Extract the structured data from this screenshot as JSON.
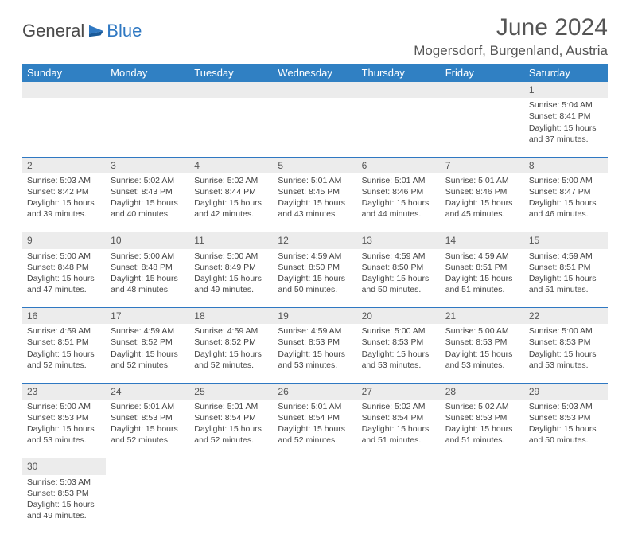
{
  "brand": {
    "part1": "General",
    "part2": "Blue"
  },
  "title": "June 2024",
  "location": "Mogersdorf, Burgenland, Austria",
  "colors": {
    "header_bg": "#3080c3",
    "header_text": "#ffffff",
    "daynum_bg": "#ececec",
    "cell_border": "#2f78c2",
    "text": "#444444",
    "brand_gray": "#4a4a4a",
    "brand_blue": "#2f78c2"
  },
  "typography": {
    "title_fontsize": 30,
    "location_fontsize": 17,
    "dayheader_fontsize": 13,
    "cell_fontsize": 10.5
  },
  "day_headers": [
    "Sunday",
    "Monday",
    "Tuesday",
    "Wednesday",
    "Thursday",
    "Friday",
    "Saturday"
  ],
  "weeks": [
    [
      null,
      null,
      null,
      null,
      null,
      null,
      {
        "n": "1",
        "sr": "5:04 AM",
        "ss": "8:41 PM",
        "dl": "15 hours and 37 minutes."
      }
    ],
    [
      {
        "n": "2",
        "sr": "5:03 AM",
        "ss": "8:42 PM",
        "dl": "15 hours and 39 minutes."
      },
      {
        "n": "3",
        "sr": "5:02 AM",
        "ss": "8:43 PM",
        "dl": "15 hours and 40 minutes."
      },
      {
        "n": "4",
        "sr": "5:02 AM",
        "ss": "8:44 PM",
        "dl": "15 hours and 42 minutes."
      },
      {
        "n": "5",
        "sr": "5:01 AM",
        "ss": "8:45 PM",
        "dl": "15 hours and 43 minutes."
      },
      {
        "n": "6",
        "sr": "5:01 AM",
        "ss": "8:46 PM",
        "dl": "15 hours and 44 minutes."
      },
      {
        "n": "7",
        "sr": "5:01 AM",
        "ss": "8:46 PM",
        "dl": "15 hours and 45 minutes."
      },
      {
        "n": "8",
        "sr": "5:00 AM",
        "ss": "8:47 PM",
        "dl": "15 hours and 46 minutes."
      }
    ],
    [
      {
        "n": "9",
        "sr": "5:00 AM",
        "ss": "8:48 PM",
        "dl": "15 hours and 47 minutes."
      },
      {
        "n": "10",
        "sr": "5:00 AM",
        "ss": "8:48 PM",
        "dl": "15 hours and 48 minutes."
      },
      {
        "n": "11",
        "sr": "5:00 AM",
        "ss": "8:49 PM",
        "dl": "15 hours and 49 minutes."
      },
      {
        "n": "12",
        "sr": "4:59 AM",
        "ss": "8:50 PM",
        "dl": "15 hours and 50 minutes."
      },
      {
        "n": "13",
        "sr": "4:59 AM",
        "ss": "8:50 PM",
        "dl": "15 hours and 50 minutes."
      },
      {
        "n": "14",
        "sr": "4:59 AM",
        "ss": "8:51 PM",
        "dl": "15 hours and 51 minutes."
      },
      {
        "n": "15",
        "sr": "4:59 AM",
        "ss": "8:51 PM",
        "dl": "15 hours and 51 minutes."
      }
    ],
    [
      {
        "n": "16",
        "sr": "4:59 AM",
        "ss": "8:51 PM",
        "dl": "15 hours and 52 minutes."
      },
      {
        "n": "17",
        "sr": "4:59 AM",
        "ss": "8:52 PM",
        "dl": "15 hours and 52 minutes."
      },
      {
        "n": "18",
        "sr": "4:59 AM",
        "ss": "8:52 PM",
        "dl": "15 hours and 52 minutes."
      },
      {
        "n": "19",
        "sr": "4:59 AM",
        "ss": "8:53 PM",
        "dl": "15 hours and 53 minutes."
      },
      {
        "n": "20",
        "sr": "5:00 AM",
        "ss": "8:53 PM",
        "dl": "15 hours and 53 minutes."
      },
      {
        "n": "21",
        "sr": "5:00 AM",
        "ss": "8:53 PM",
        "dl": "15 hours and 53 minutes."
      },
      {
        "n": "22",
        "sr": "5:00 AM",
        "ss": "8:53 PM",
        "dl": "15 hours and 53 minutes."
      }
    ],
    [
      {
        "n": "23",
        "sr": "5:00 AM",
        "ss": "8:53 PM",
        "dl": "15 hours and 53 minutes."
      },
      {
        "n": "24",
        "sr": "5:01 AM",
        "ss": "8:53 PM",
        "dl": "15 hours and 52 minutes."
      },
      {
        "n": "25",
        "sr": "5:01 AM",
        "ss": "8:54 PM",
        "dl": "15 hours and 52 minutes."
      },
      {
        "n": "26",
        "sr": "5:01 AM",
        "ss": "8:54 PM",
        "dl": "15 hours and 52 minutes."
      },
      {
        "n": "27",
        "sr": "5:02 AM",
        "ss": "8:54 PM",
        "dl": "15 hours and 51 minutes."
      },
      {
        "n": "28",
        "sr": "5:02 AM",
        "ss": "8:53 PM",
        "dl": "15 hours and 51 minutes."
      },
      {
        "n": "29",
        "sr": "5:03 AM",
        "ss": "8:53 PM",
        "dl": "15 hours and 50 minutes."
      }
    ],
    [
      {
        "n": "30",
        "sr": "5:03 AM",
        "ss": "8:53 PM",
        "dl": "15 hours and 49 minutes."
      },
      null,
      null,
      null,
      null,
      null,
      null
    ]
  ],
  "labels": {
    "sunrise": "Sunrise: ",
    "sunset": "Sunset: ",
    "daylight": "Daylight: "
  }
}
